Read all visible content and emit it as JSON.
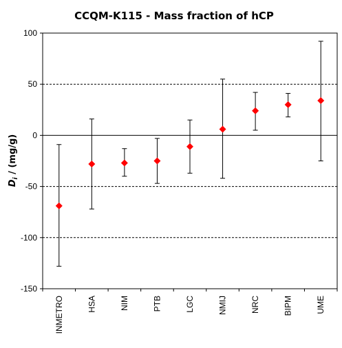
{
  "chart_data": {
    "type": "scatter",
    "title": "CCQM-K115 - Mass fraction of hCP",
    "ylabel_symbol": "D",
    "ylabel_subscript": "i",
    "ylabel_unit": " / (mg/g)",
    "xlabel": "",
    "ylim": [
      -150,
      100
    ],
    "y_ticks": [
      100,
      50,
      0,
      -50,
      -100,
      -150
    ],
    "categories": [
      "INMETRO",
      "HSA",
      "NIM",
      "PTB",
      "LGC",
      "NMIJ",
      "NRC",
      "BIPM",
      "UME"
    ],
    "values": [
      -69,
      -28,
      -27,
      -25,
      -11,
      6,
      24,
      30,
      34
    ],
    "error_low": [
      -128,
      -72,
      -40,
      -47,
      -37,
      -42,
      5,
      18,
      -25
    ],
    "error_high": [
      -9,
      16,
      -13,
      -3,
      15,
      55,
      42,
      41,
      92
    ],
    "marker": "diamond",
    "marker_color": "#ff0000",
    "grid_lines": [
      50,
      -50,
      -100
    ],
    "grid_style": "dashed",
    "zero_line": true,
    "legend": "none"
  }
}
